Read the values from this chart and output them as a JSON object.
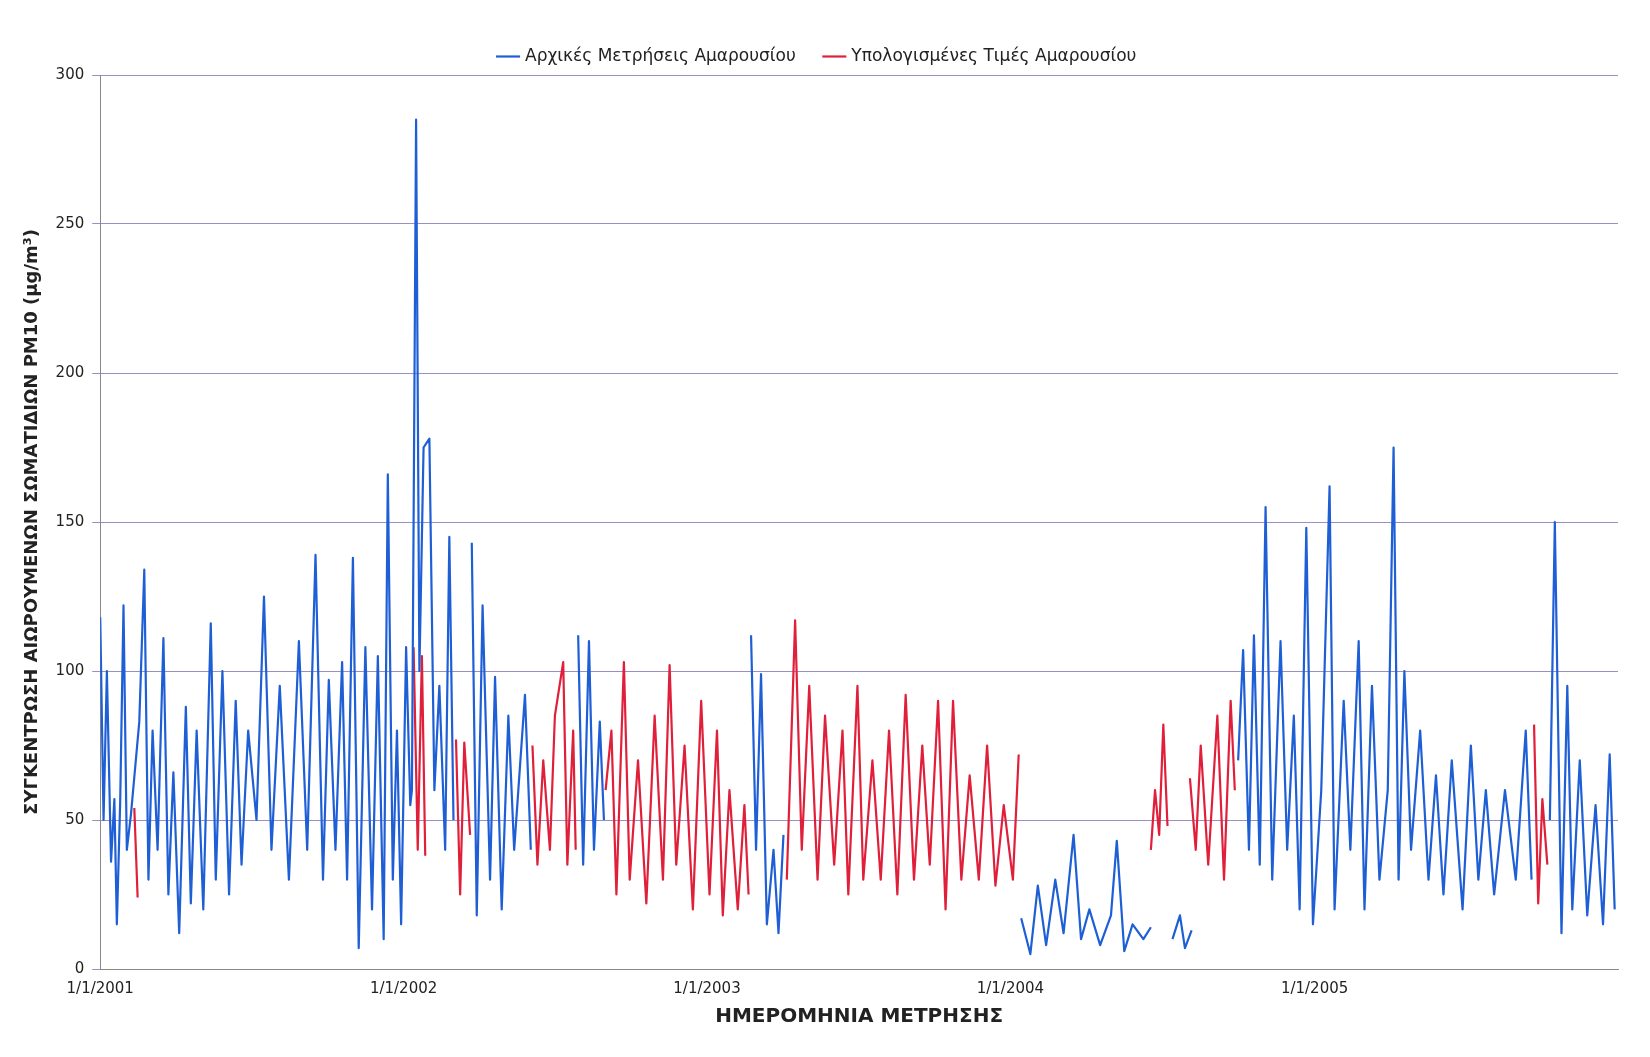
{
  "chart_data": {
    "type": "line",
    "xlabel": "ΗΜΕΡΟΜΗΝΙΑ ΜΕΤΡΗΣΗΣ",
    "ylabel": "ΣΥΓΚΕΝΤΡΩΣΗ ΑΙΩΡΟΥΜΕΝΩΝ ΣΩΜΑΤΙΔΙΩΝ PM10 (μg/m³)",
    "xlim": [
      "2001-01-01",
      "2006-01-01"
    ],
    "xticks": [
      {
        "value": "2001-01-01",
        "label": "1/1/2001"
      },
      {
        "value": "2002-01-01",
        "label": "1/1/2002"
      },
      {
        "value": "2003-01-01",
        "label": "1/1/2003"
      },
      {
        "value": "2004-01-01",
        "label": "1/1/2004"
      },
      {
        "value": "2005-01-01",
        "label": "1/1/2005"
      }
    ],
    "ylim": [
      0,
      300
    ],
    "yticks": [
      0,
      50,
      100,
      150,
      200,
      250,
      300
    ],
    "grid": "y",
    "legend": "top",
    "marker": "none",
    "line_style": "solid",
    "series": [
      {
        "name": "Αρχικές Μετρήσεις Αμαρουσίου",
        "color": "#1f5fd6",
        "x": [
          "2001-01-01",
          "2001-01-05",
          "2001-01-09",
          "2001-01-14",
          "2001-01-18",
          "2001-01-21",
          "2001-01-25",
          "2001-01-29",
          "2001-02-02",
          "2001-02-07",
          "2001-02-17",
          "2001-02-23",
          "2001-02-28",
          "2001-03-05",
          "2001-03-11",
          "2001-03-18",
          "2001-03-24",
          "2001-03-30",
          "2001-04-06",
          "2001-04-14",
          "2001-04-20",
          "2001-04-27",
          "2001-05-05",
          "2001-05-14",
          "2001-05-20",
          "2001-05-28",
          "2001-06-05",
          "2001-06-13",
          "2001-06-20",
          "2001-06-28",
          "2001-07-08",
          "2001-07-17",
          "2001-07-26",
          "2001-08-05",
          "2001-08-16",
          "2001-08-28",
          "2001-09-07",
          "2001-09-17",
          "2001-09-26",
          "2001-10-03",
          "2001-10-11",
          "2001-10-19",
          "2001-10-25",
          "2001-11-01",
          "2001-11-08",
          "2001-11-16",
          "2001-11-24",
          "2001-12-01",
          "2001-12-08",
          "2001-12-13",
          "2001-12-19",
          "2001-12-24",
          "2001-12-29",
          "2002-01-04",
          "2002-01-09",
          "2002-01-11",
          "2002-01-16",
          "2002-01-20",
          "2002-01-25",
          "2002-02-01",
          "2002-02-07",
          "2002-02-13",
          "2002-02-20",
          "2002-02-25",
          "2002-03-02",
          "2002-03-04",
          "2002-03-24",
          "2002-03-30",
          "2002-04-06",
          "2002-04-15",
          "2002-04-21",
          "2002-04-29",
          "2002-05-07",
          "2002-05-14",
          "2002-05-27",
          "2002-06-03",
          "2002-07-02",
          "2002-07-30",
          "2002-08-05",
          "2002-08-12",
          "2002-08-18",
          "2002-08-25",
          "2002-08-30",
          "2002-11-26",
          "2003-02-23",
          "2003-03-01",
          "2003-03-07",
          "2003-03-14",
          "2003-03-22",
          "2003-03-28",
          "2003-04-03",
          "2003-08-08",
          "2004-01-14",
          "2004-01-25",
          "2004-02-03",
          "2004-02-13",
          "2004-02-24",
          "2004-03-05",
          "2004-03-17",
          "2004-03-26",
          "2004-04-05",
          "2004-04-18",
          "2004-05-01",
          "2004-05-08",
          "2004-05-17",
          "2004-05-27",
          "2004-06-09",
          "2004-06-18",
          "2004-07-02",
          "2004-07-14",
          "2004-07-23",
          "2004-07-29",
          "2004-08-06",
          "2004-09-05",
          "2004-10-01",
          "2004-10-07",
          "2004-10-14",
          "2004-10-20",
          "2004-10-27",
          "2004-11-03",
          "2004-11-11",
          "2004-11-21",
          "2004-11-29",
          "2004-12-07",
          "2004-12-14",
          "2004-12-22",
          "2004-12-30",
          "2005-01-09",
          "2005-01-19",
          "2005-01-25",
          "2005-02-05",
          "2005-02-13",
          "2005-02-23",
          "2005-03-02",
          "2005-03-11",
          "2005-03-20",
          "2005-03-30",
          "2005-04-06",
          "2005-04-12",
          "2005-04-19",
          "2005-04-27",
          "2005-05-08",
          "2005-05-18",
          "2005-05-27",
          "2005-06-05",
          "2005-06-15",
          "2005-06-28",
          "2005-07-08",
          "2005-07-17",
          "2005-07-26",
          "2005-08-05",
          "2005-08-18",
          "2005-08-31",
          "2005-09-12",
          "2005-09-19",
          "2005-09-30",
          "2005-10-11",
          "2005-10-17",
          "2005-10-25",
          "2005-11-01",
          "2005-11-07",
          "2005-11-16",
          "2005-11-25",
          "2005-12-05",
          "2005-12-14",
          "2005-12-22",
          "2005-12-28"
        ],
        "values": [
          118,
          50,
          100,
          36,
          57,
          15,
          56,
          122,
          40,
          52,
          83,
          134,
          30,
          80,
          40,
          111,
          25,
          66,
          12,
          88,
          22,
          80,
          20,
          116,
          30,
          100,
          25,
          90,
          35,
          80,
          50,
          125,
          40,
          95,
          30,
          110,
          40,
          139,
          30,
          97,
          40,
          103,
          30,
          138,
          7,
          108,
          20,
          105,
          10,
          166,
          30,
          80,
          15,
          108,
          55,
          60,
          285,
          100,
          175,
          178,
          60,
          95,
          40,
          145,
          50,
          null,
          143,
          18,
          122,
          30,
          98,
          20,
          85,
          40,
          92,
          40,
          null,
          112,
          35,
          110,
          40,
          83,
          50,
          null,
          112,
          40,
          99,
          15,
          40,
          12,
          45,
          null,
          17,
          5,
          28,
          8,
          30,
          12,
          45,
          10,
          20,
          8,
          18,
          43,
          6,
          15,
          10,
          14,
          null,
          10,
          18,
          7,
          13,
          null,
          70,
          107,
          40,
          112,
          35,
          155,
          30,
          110,
          40,
          85,
          20,
          148,
          15,
          60,
          162,
          20,
          90,
          40,
          110,
          20,
          95,
          30,
          60,
          175,
          30,
          100,
          40,
          80,
          30,
          65,
          25,
          70,
          20,
          75,
          30,
          60,
          25,
          60,
          30,
          80,
          30,
          null,
          50,
          150,
          12,
          95,
          20,
          70,
          18,
          55,
          15,
          72,
          20
        ]
      },
      {
        "name": "Υπολογισμένες Τιμές Αμαρουσίου",
        "color": "#e0203a",
        "x": [
          "2001-02-11",
          "2001-02-15",
          "2001-07-02",
          "2002-01-13",
          "2002-01-18",
          "2002-01-23",
          "2002-01-27",
          "2002-02-07",
          "2002-03-05",
          "2002-03-10",
          "2002-03-15",
          "2002-03-22",
          "2002-04-21",
          "2002-06-05",
          "2002-06-11",
          "2002-06-18",
          "2002-06-26",
          "2002-07-02",
          "2002-07-12",
          "2002-07-17",
          "2002-07-24",
          "2002-07-27",
          "2002-07-28",
          "2002-09-01",
          "2002-09-08",
          "2002-09-14",
          "2002-09-23",
          "2002-09-30",
          "2002-10-10",
          "2002-10-20",
          "2002-10-30",
          "2002-11-09",
          "2002-11-17",
          "2002-11-25",
          "2002-12-05",
          "2002-12-15",
          "2002-12-25",
          "2003-01-04",
          "2003-01-13",
          "2003-01-20",
          "2003-01-28",
          "2003-02-07",
          "2003-02-15",
          "2003-02-20",
          "2003-03-15",
          "2003-04-07",
          "2003-04-17",
          "2003-04-25",
          "2003-05-04",
          "2003-05-14",
          "2003-05-23",
          "2003-06-03",
          "2003-06-13",
          "2003-06-20",
          "2003-07-01",
          "2003-07-08",
          "2003-07-19",
          "2003-07-29",
          "2003-08-08",
          "2003-08-18",
          "2003-08-28",
          "2003-09-07",
          "2003-09-17",
          "2003-09-26",
          "2003-10-06",
          "2003-10-15",
          "2003-10-24",
          "2003-11-03",
          "2003-11-13",
          "2003-11-24",
          "2003-12-04",
          "2003-12-14",
          "2003-12-24",
          "2004-01-04",
          "2004-01-11",
          "2004-03-14",
          "2004-06-18",
          "2004-06-23",
          "2004-06-28",
          "2004-07-03",
          "2004-07-08",
          "2004-07-23",
          "2004-08-04",
          "2004-08-11",
          "2004-08-17",
          "2004-08-26",
          "2004-09-06",
          "2004-09-14",
          "2004-09-22",
          "2004-09-27",
          "2005-03-15",
          "2005-09-22",
          "2005-09-27",
          "2005-10-02",
          "2005-10-08"
        ],
        "values": [
          54,
          24,
          null,
          108,
          40,
          105,
          38,
          null,
          77,
          25,
          76,
          45,
          null,
          75,
          35,
          70,
          40,
          85,
          103,
          35,
          80,
          40,
          null,
          60,
          80,
          25,
          103,
          30,
          70,
          22,
          85,
          30,
          102,
          35,
          75,
          20,
          90,
          25,
          80,
          18,
          60,
          20,
          55,
          25,
          null,
          30,
          117,
          40,
          95,
          30,
          85,
          35,
          80,
          25,
          95,
          30,
          70,
          30,
          80,
          25,
          92,
          30,
          75,
          35,
          90,
          20,
          90,
          30,
          65,
          30,
          75,
          28,
          55,
          30,
          72,
          null,
          40,
          60,
          45,
          82,
          48,
          null,
          64,
          40,
          75,
          35,
          85,
          30,
          90,
          60,
          null,
          82,
          22,
          57,
          35
        ]
      }
    ]
  }
}
